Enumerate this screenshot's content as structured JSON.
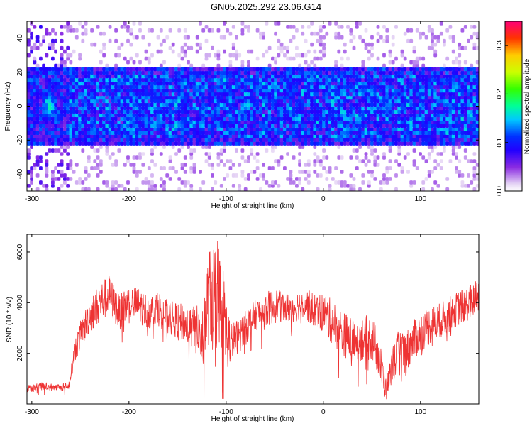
{
  "title": "GN05.2025.292.23.06.G14",
  "colors": {
    "snr_line": "#ee3333",
    "axis": "#000000"
  },
  "chart_data": [
    {
      "type": "heatmap",
      "xlabel": "Height of straight line (km)",
      "ylabel": "Frequency (Hz)",
      "xlim": [
        -305,
        160
      ],
      "ylim": [
        -50,
        50
      ],
      "x_ticks": [
        -300,
        -200,
        -100,
        0,
        100
      ],
      "y_ticks": [
        -40,
        -20,
        0,
        20,
        40
      ],
      "band": {
        "low": -22,
        "high": 22,
        "sparse_low": -50,
        "sparse_high": 50
      },
      "colorbar": {
        "label": "Normalized spectral amplitude",
        "range": [
          0.0,
          0.35
        ],
        "ticks": [
          0.0,
          0.1,
          0.2,
          0.3
        ],
        "tick_labels": [
          "0.0",
          "0.1",
          "0.2",
          "0.3"
        ]
      },
      "features": [
        {
          "x": -282,
          "y": 0,
          "amplitude": 0.22
        },
        {
          "x": -125,
          "y": -5,
          "amplitude": 0.13
        },
        {
          "x": 50,
          "y": 5,
          "amplitude": 0.14
        },
        {
          "x": 65,
          "y": 0,
          "amplitude": 0.15
        }
      ]
    },
    {
      "type": "line",
      "xlabel": "Height of straight line (km)",
      "ylabel": "SNR (10 * v/v)",
      "xlim": [
        -305,
        160
      ],
      "ylim": [
        0,
        6700
      ],
      "x_ticks": [
        -300,
        -200,
        -100,
        0,
        100
      ],
      "y_ticks": [
        2000,
        4000,
        6000
      ],
      "series": [
        {
          "x": [
            -305,
            -290,
            -275,
            -262,
            -255,
            -248,
            -240,
            -230,
            -220,
            -210,
            -200,
            -190,
            -180,
            -170,
            -160,
            -150,
            -140,
            -130,
            -125,
            -118,
            -110,
            -105,
            -100,
            -95,
            -90,
            -80,
            -70,
            -60,
            -50,
            -40,
            -30,
            -20,
            -10,
            0,
            10,
            20,
            30,
            40,
            50,
            55,
            60,
            65,
            70,
            78,
            85,
            95,
            105,
            115,
            125,
            135,
            145,
            155,
            160
          ],
          "y": [
            600,
            700,
            650,
            700,
            2200,
            2900,
            3500,
            4000,
            4300,
            3600,
            4000,
            3900,
            3600,
            3800,
            3400,
            3300,
            3100,
            2900,
            2400,
            4200,
            4500,
            4200,
            2800,
            2400,
            2600,
            3000,
            3500,
            3700,
            3900,
            3800,
            3800,
            4000,
            3700,
            3600,
            3200,
            2800,
            2500,
            2600,
            2600,
            2200,
            1300,
            500,
            1500,
            2200,
            2000,
            2600,
            3000,
            3200,
            3400,
            3700,
            3900,
            4100,
            4300
          ],
          "noise": [
            150,
            150,
            150,
            150,
            500,
            600,
            700,
            800,
            800,
            700,
            700,
            700,
            700,
            700,
            700,
            700,
            800,
            1000,
            1200,
            1900,
            2200,
            2000,
            1500,
            800,
            700,
            700,
            600,
            700,
            700,
            600,
            600,
            600,
            700,
            800,
            900,
            900,
            900,
            900,
            900,
            900,
            800,
            400,
            700,
            800,
            900,
            800,
            800,
            700,
            700,
            700,
            700,
            700,
            700
          ]
        }
      ]
    }
  ]
}
